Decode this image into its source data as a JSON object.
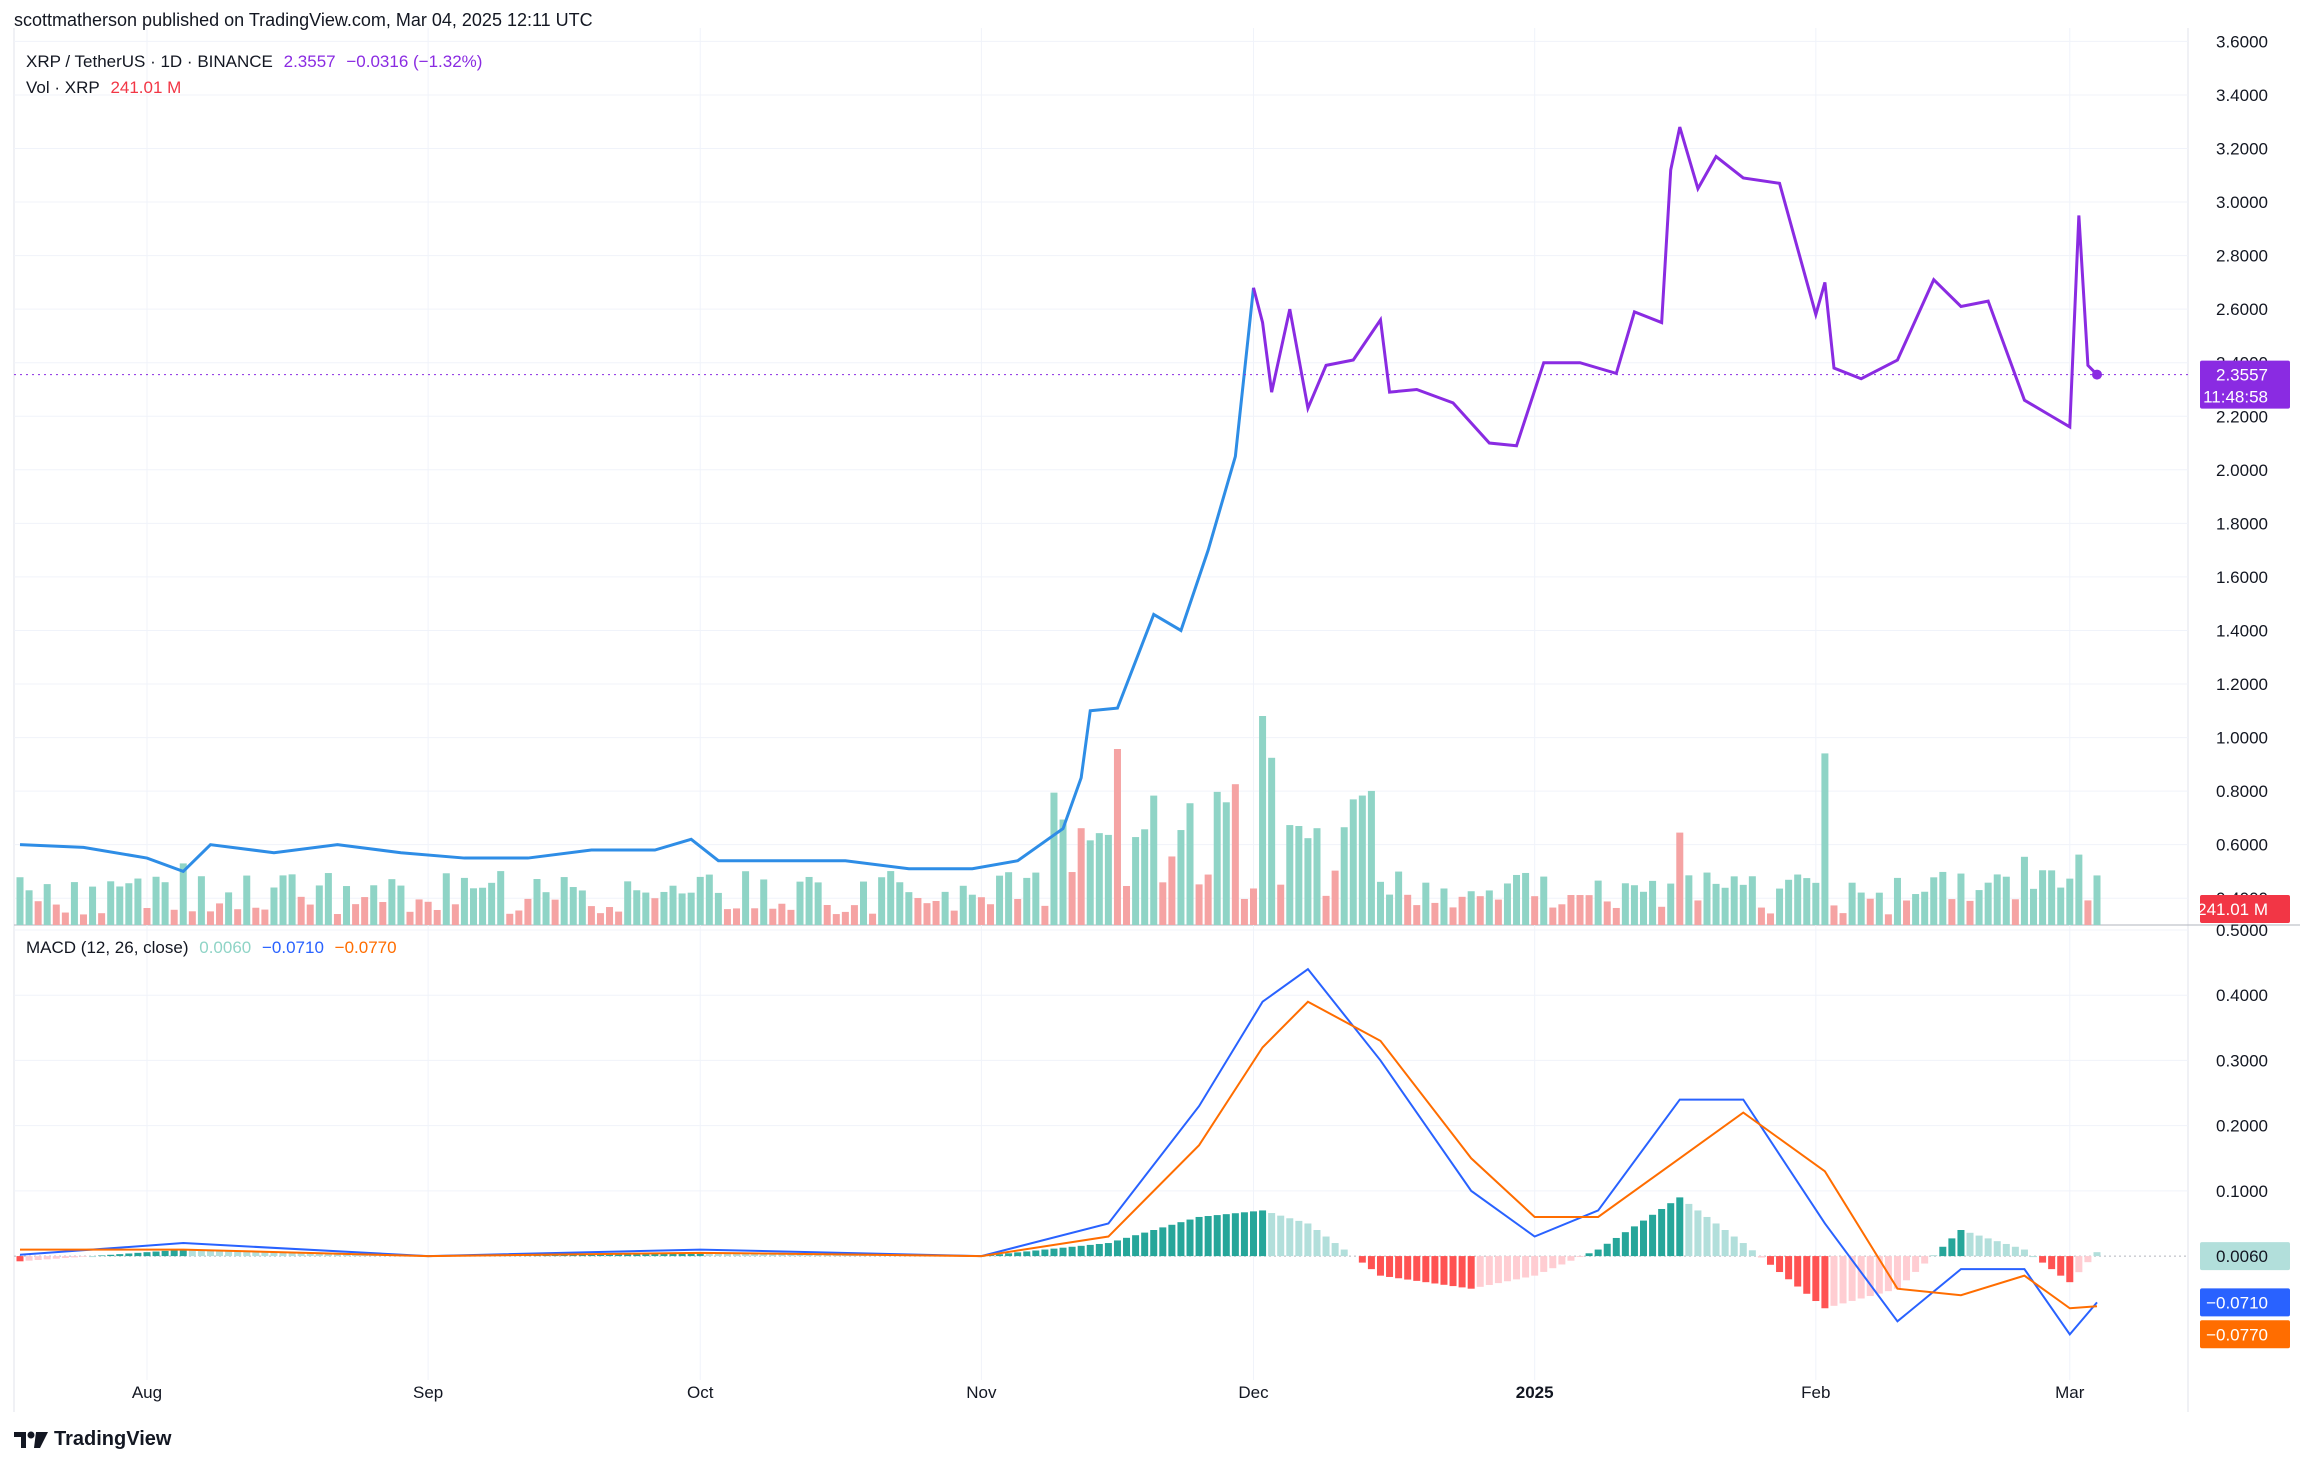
{
  "header": {
    "publisher_text": "scottmatherson published on TradingView.com, Mar 04, 2025 12:11 UTC"
  },
  "legend": {
    "symbol": "XRP / TetherUS · 1D · BINANCE",
    "last_price": "2.3557",
    "change": "−0.0316 (−1.32%)",
    "vol_label": "Vol · XRP",
    "vol_value": "241.01 M",
    "macd_label": "MACD (12, 26, close)",
    "macd_hist": "0.0060",
    "macd_line": "−0.0710",
    "macd_signal": "−0.0770"
  },
  "badges": {
    "price": "2.3557",
    "countdown": "11:48:58",
    "volume": "241.01 M",
    "hist": "0.0060",
    "macd": "−0.0710",
    "signal": "−0.0770"
  },
  "brand": {
    "name": "TradingView"
  },
  "colors": {
    "price_before": "#2962ff",
    "price_line_main": "#2e8de6",
    "price_after": "#8a2be2",
    "vol_up": "#8fd4c6",
    "vol_down": "#f5a3a3",
    "macd_line": "#2962ff",
    "signal_line": "#ff6d00",
    "hist_up_strong": "#26a69a",
    "hist_up_weak": "#b2dfdb",
    "hist_down_strong": "#ff5252",
    "hist_down_weak": "#ffcdd2"
  },
  "chart_data": [
    {
      "type": "line",
      "name": "XRP / TetherUS price",
      "x": [
        "2024-07-18",
        "2024-07-25",
        "2024-08-01",
        "2024-08-05",
        "2024-08-08",
        "2024-08-15",
        "2024-08-22",
        "2024-08-29",
        "2024-09-05",
        "2024-09-12",
        "2024-09-19",
        "2024-09-26",
        "2024-09-30",
        "2024-10-03",
        "2024-10-10",
        "2024-10-17",
        "2024-10-24",
        "2024-10-31",
        "2024-11-05",
        "2024-11-10",
        "2024-11-12",
        "2024-11-13",
        "2024-11-16",
        "2024-11-20",
        "2024-11-23",
        "2024-11-26",
        "2024-11-29",
        "2024-12-01",
        "2024-12-02",
        "2024-12-03",
        "2024-12-05",
        "2024-12-07",
        "2024-12-09",
        "2024-12-12",
        "2024-12-15",
        "2024-12-16",
        "2024-12-19",
        "2024-12-23",
        "2024-12-27",
        "2024-12-30",
        "2025-01-02",
        "2025-01-06",
        "2025-01-10",
        "2025-01-12",
        "2025-01-15",
        "2025-01-16",
        "2025-01-17",
        "2025-01-19",
        "2025-01-21",
        "2025-01-24",
        "2025-01-28",
        "2025-02-01",
        "2025-02-02",
        "2025-02-03",
        "2025-02-06",
        "2025-02-10",
        "2025-02-14",
        "2025-02-17",
        "2025-02-20",
        "2025-02-24",
        "2025-02-27",
        "2025-03-01",
        "2025-03-02",
        "2025-03-03",
        "2025-03-04"
      ],
      "values": [
        0.6,
        0.59,
        0.55,
        0.5,
        0.6,
        0.57,
        0.6,
        0.57,
        0.55,
        0.55,
        0.58,
        0.58,
        0.62,
        0.54,
        0.54,
        0.54,
        0.51,
        0.51,
        0.54,
        0.66,
        0.85,
        1.1,
        1.11,
        1.46,
        1.4,
        1.7,
        2.05,
        2.68,
        2.55,
        2.29,
        2.6,
        2.23,
        2.39,
        2.41,
        2.56,
        2.29,
        2.3,
        2.25,
        2.1,
        2.09,
        2.4,
        2.4,
        2.36,
        2.59,
        2.55,
        3.12,
        3.28,
        3.05,
        3.17,
        3.09,
        3.07,
        2.58,
        2.7,
        2.38,
        2.34,
        2.41,
        2.71,
        2.61,
        2.63,
        2.26,
        2.2,
        2.16,
        2.95,
        2.39,
        2.3557
      ],
      "ylim": [
        0.3,
        3.65
      ],
      "yticks": [
        "3.6000",
        "3.4000",
        "3.2000",
        "3.0000",
        "2.8000",
        "2.6000",
        "2.4000",
        "2.2000",
        "2.0000",
        "1.8000",
        "1.6000",
        "1.4000",
        "1.2000",
        "1.0000",
        "0.8000",
        "0.6000",
        "0.4000"
      ],
      "xticks": [
        "Aug",
        "Sep",
        "Oct",
        "Nov",
        "Dec",
        "2025",
        "Feb",
        "Mar"
      ],
      "last_value": 2.3557
    },
    {
      "type": "bar",
      "name": "Vol · XRP",
      "x": [
        "2024-08-05",
        "2024-11-12",
        "2024-11-16",
        "2024-11-29",
        "2024-12-02",
        "2024-12-03",
        "2024-12-08",
        "2025-01-17",
        "2025-02-02",
        "2025-02-24",
        "2025-03-02"
      ],
      "values_relative": [
        0.28,
        0.44,
        0.8,
        0.64,
        0.95,
        0.76,
        0.44,
        0.42,
        0.78,
        0.31,
        0.32
      ],
      "last_value": "241.01 M"
    },
    {
      "type": "line",
      "name": "MACD (12, 26, close)",
      "x": [
        "2024-07-18",
        "2024-08-05",
        "2024-09-01",
        "2024-10-01",
        "2024-11-01",
        "2024-11-15",
        "2024-11-25",
        "2024-12-02",
        "2024-12-07",
        "2024-12-15",
        "2024-12-25",
        "2025-01-01",
        "2025-01-08",
        "2025-01-17",
        "2025-01-24",
        "2025-02-02",
        "2025-02-10",
        "2025-02-17",
        "2025-02-24",
        "2025-03-01",
        "2025-03-04"
      ],
      "macd": [
        0.002,
        0.02,
        0.0,
        0.01,
        0.0,
        0.05,
        0.23,
        0.39,
        0.44,
        0.3,
        0.1,
        0.03,
        0.07,
        0.24,
        0.24,
        0.05,
        -0.1,
        -0.02,
        -0.02,
        -0.12,
        -0.071
      ],
      "signal": [
        0.01,
        0.01,
        0.0,
        0.005,
        0.0,
        0.03,
        0.17,
        0.32,
        0.39,
        0.33,
        0.15,
        0.06,
        0.06,
        0.15,
        0.22,
        0.13,
        -0.05,
        -0.06,
        -0.03,
        -0.08,
        -0.077
      ],
      "ylim": [
        -0.19,
        0.5
      ],
      "yticks": [
        "0.5000",
        "0.4000",
        "0.3000",
        "0.2000",
        "0.1000"
      ]
    }
  ]
}
